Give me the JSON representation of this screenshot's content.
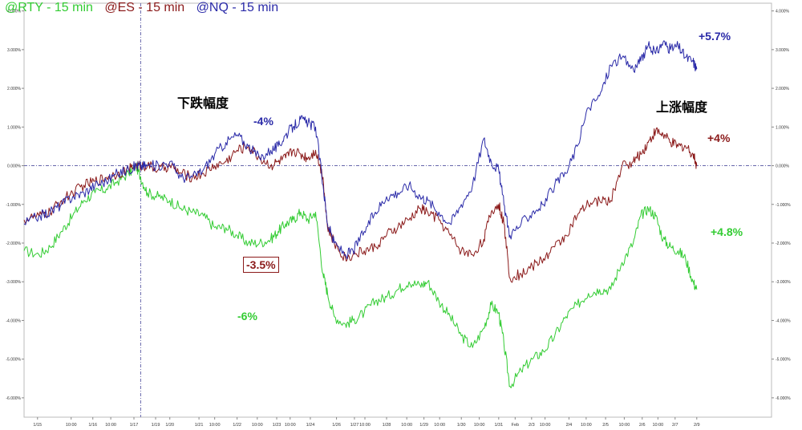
{
  "legend": [
    {
      "label": "@RTY - 15 min",
      "color": "#33cc33"
    },
    {
      "label": "@ES - 15 min",
      "color": "#8b1a1a"
    },
    {
      "label": "@NQ - 15 min",
      "color": "#2a2aa8"
    }
  ],
  "annotations": {
    "decline_title": "下跌幅度",
    "rise_title": "上涨幅度",
    "nq_decline": "-4%",
    "es_decline": "-3.5%",
    "rty_decline": "-6%",
    "nq_rise": "+5.7%",
    "es_rise": "+4%",
    "rty_rise": "+4.8%"
  },
  "chart_data": {
    "type": "line",
    "title": "",
    "xlabel": "",
    "ylabel": "",
    "ylim": [
      -6.5,
      4.2
    ],
    "y_ticks": [
      "4.000%",
      "3.000%",
      "2.000%",
      "1.000%",
      "0.000%",
      "-1.000%",
      "-2.000%",
      "-3.000%",
      "-4.000%",
      "-5.000%",
      "-6.000%"
    ],
    "x_ticks": [
      "1/15",
      "10:00",
      "1/16",
      "10:00",
      "1/17",
      "1/19",
      "1/20",
      "1/21",
      "10:00",
      "1/22",
      "10:00",
      "1/23",
      "10:00",
      "1/24",
      "1/26",
      "1/27",
      "10:00",
      "1/28",
      "10:00",
      "1/29",
      "10:00",
      "1/30",
      "10:00",
      "1/31",
      "Feb",
      "2/3",
      "10:00",
      "2/4",
      "10:00",
      "2/5",
      "10:00",
      "2/6",
      "10:00",
      "2/7",
      "2/9"
    ],
    "x_range": [
      0,
      100
    ],
    "x_tick_positions": [
      1.8,
      6.3,
      9.2,
      11.6,
      14.7,
      17.6,
      19.5,
      23.4,
      25.5,
      28.5,
      31.2,
      33.8,
      35.6,
      38.3,
      41.8,
      44.2,
      45.6,
      48.5,
      51.2,
      53.5,
      55.6,
      58.5,
      60.9,
      63.5,
      65.7,
      67.9,
      69.7,
      72.9,
      75.2,
      77.8,
      80.3,
      82.7,
      84.8,
      87.1,
      90.0
    ],
    "reference_line_y": 0,
    "reference_line_x": 15.6,
    "grid": false,
    "series": [
      {
        "name": "@RTY - 15 min",
        "color": "#33cc33",
        "x": [
          0,
          2,
          3.5,
          5,
          6.5,
          8,
          9.5,
          11,
          12.5,
          14,
          15,
          15.6,
          16.5,
          18,
          19.5,
          21,
          22.5,
          24,
          25.5,
          27,
          28.5,
          30,
          31.5,
          33,
          34,
          35,
          36,
          37,
          38,
          39,
          40,
          40.6,
          41.5,
          43,
          44,
          45.5,
          47,
          48.5,
          50,
          51.5,
          53,
          54,
          55.5,
          57,
          58.5,
          60,
          61.5,
          62.5,
          63.5,
          64.2,
          65,
          66.5,
          68,
          69.5,
          71,
          72.5,
          74,
          75.5,
          77,
          78.5,
          80,
          81.5,
          82.5,
          83.5,
          84.5,
          85.5,
          86.5,
          87.5,
          88.5,
          89.5,
          90
        ],
        "y": [
          -2.2,
          -2.3,
          -2.1,
          -1.7,
          -1.3,
          -0.9,
          -0.7,
          -0.6,
          -0.4,
          -0.2,
          0.0,
          -0.3,
          -0.7,
          -0.8,
          -0.9,
          -1.1,
          -1.2,
          -1.3,
          -1.6,
          -1.6,
          -1.8,
          -2.0,
          -2.0,
          -1.9,
          -1.7,
          -1.5,
          -1.4,
          -1.2,
          -1.4,
          -1.2,
          -2.8,
          -3.3,
          -3.9,
          -4.1,
          -4.0,
          -3.8,
          -3.5,
          -3.4,
          -3.2,
          -3.0,
          -3.1,
          -3.0,
          -3.5,
          -3.9,
          -4.4,
          -4.7,
          -4.2,
          -3.6,
          -3.8,
          -4.6,
          -5.7,
          -5.3,
          -5.0,
          -4.8,
          -4.4,
          -3.9,
          -3.6,
          -3.3,
          -3.2,
          -3.2,
          -2.5,
          -2.0,
          -1.3,
          -1.1,
          -1.3,
          -1.9,
          -2.1,
          -2.2,
          -2.4,
          -3.0,
          -3.2
        ]
      },
      {
        "name": "@ES - 15 min",
        "color": "#8b1a1a",
        "x": [
          0,
          2,
          3.5,
          5,
          6.5,
          8,
          9.5,
          11,
          12.5,
          14,
          15,
          15.6,
          16.5,
          18,
          19.5,
          21,
          22.5,
          24,
          25.5,
          27,
          28.5,
          30,
          31.5,
          33,
          34,
          35,
          36,
          37,
          38,
          39,
          40,
          40.6,
          41.5,
          43,
          44,
          45.5,
          47,
          48.5,
          50,
          51.5,
          53,
          54,
          55.5,
          57,
          58.5,
          60,
          61.5,
          62.5,
          63.5,
          64.2,
          65,
          66.5,
          68,
          69.5,
          71,
          72.5,
          74,
          75.5,
          77,
          78.5,
          80,
          81.5,
          82.5,
          83.5,
          84.5,
          85.5,
          86.5,
          87.5,
          88.5,
          89.5,
          90
        ],
        "y": [
          -1.4,
          -1.3,
          -1.2,
          -0.9,
          -0.7,
          -0.5,
          -0.4,
          -0.3,
          -0.2,
          -0.1,
          0.0,
          0.0,
          0.0,
          -0.1,
          0.0,
          -0.2,
          -0.3,
          -0.2,
          0.0,
          0.1,
          0.4,
          0.5,
          0.2,
          0.0,
          0.1,
          0.2,
          0.4,
          0.3,
          0.2,
          0.4,
          -0.3,
          -1.6,
          -2.0,
          -2.4,
          -2.3,
          -2.2,
          -2.1,
          -1.8,
          -1.6,
          -1.4,
          -1.1,
          -1.2,
          -1.4,
          -1.8,
          -2.2,
          -2.3,
          -1.9,
          -1.2,
          -1.0,
          -1.5,
          -2.9,
          -2.8,
          -2.6,
          -2.4,
          -2.1,
          -1.8,
          -1.3,
          -1.0,
          -0.9,
          -0.9,
          0.0,
          0.1,
          0.3,
          0.6,
          0.9,
          0.8,
          0.6,
          0.5,
          0.5,
          0.3,
          0.0
        ]
      },
      {
        "name": "@NQ - 15 min",
        "color": "#2a2aa8",
        "x": [
          0,
          2,
          3.5,
          5,
          6.5,
          8,
          9.5,
          11,
          12.5,
          14,
          15,
          15.6,
          16.5,
          18,
          19.5,
          21,
          22.5,
          24,
          25.5,
          27,
          28.5,
          30,
          31.5,
          33,
          34,
          35,
          36,
          37,
          38,
          39,
          40,
          40.6,
          41.5,
          43,
          44,
          45.5,
          47,
          48.5,
          50,
          51.5,
          53,
          54,
          55.5,
          57,
          58.5,
          60,
          61.5,
          62.5,
          63.5,
          64.2,
          65,
          66.5,
          68,
          69.5,
          71,
          72.5,
          74,
          75.5,
          77,
          78.5,
          80,
          81.5,
          82.5,
          83.5,
          84.5,
          85.5,
          86.5,
          87.5,
          88.5,
          89.5,
          90
        ],
        "y": [
          -1.5,
          -1.3,
          -1.2,
          -1.0,
          -0.8,
          -0.7,
          -0.5,
          -0.4,
          -0.2,
          -0.1,
          0.0,
          0.0,
          0.0,
          0.0,
          0.1,
          -0.3,
          -0.3,
          -0.1,
          0.3,
          0.6,
          0.8,
          0.5,
          0.2,
          0.4,
          0.5,
          0.8,
          1.0,
          1.2,
          1.1,
          1.0,
          -0.5,
          -1.5,
          -2.0,
          -2.3,
          -2.2,
          -1.7,
          -1.2,
          -0.8,
          -0.7,
          -0.5,
          -0.8,
          -0.9,
          -1.2,
          -1.5,
          -1.0,
          -0.5,
          0.7,
          0.1,
          -0.1,
          -1.0,
          -1.8,
          -1.5,
          -1.2,
          -1.0,
          -0.5,
          -0.2,
          0.5,
          1.5,
          1.8,
          2.6,
          2.8,
          2.5,
          2.7,
          3.1,
          2.9,
          3.2,
          3.0,
          3.1,
          2.8,
          2.7,
          2.5
        ]
      }
    ]
  }
}
